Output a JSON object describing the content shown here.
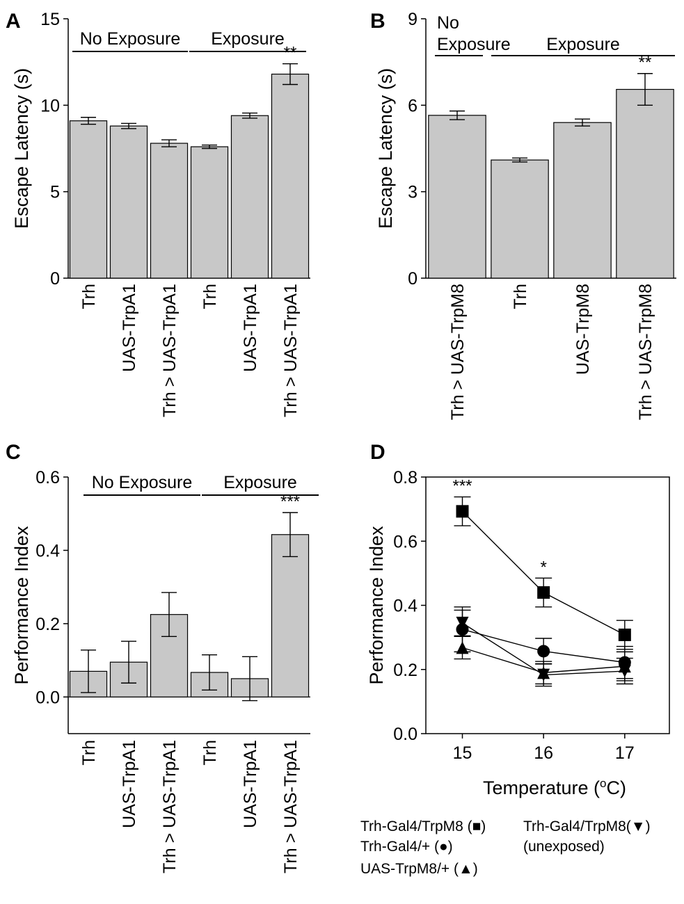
{
  "chart_data": [
    {
      "panel": "A",
      "type": "bar",
      "title": "",
      "xlabel": "",
      "ylabel": "Escape Latency (s)",
      "ylim": [
        0,
        15
      ],
      "yticks": [
        0,
        5,
        10,
        15
      ],
      "categories": [
        "Trh",
        "UAS-TrpA1",
        "Trh > UAS-TrpA1",
        "Trh",
        "UAS-TrpA1",
        "Trh > UAS-TrpA1"
      ],
      "values": [
        9.1,
        8.8,
        7.8,
        7.6,
        9.4,
        11.8
      ],
      "errors": [
        0.2,
        0.15,
        0.2,
        0.1,
        0.15,
        0.6
      ],
      "groups": [
        {
          "label": "No Exposure",
          "start": 0,
          "end": 2
        },
        {
          "label": "Exposure",
          "start": 3,
          "end": 5
        }
      ],
      "annotations": [
        {
          "index": 5,
          "text": "**"
        }
      ]
    },
    {
      "panel": "B",
      "type": "bar",
      "title": "",
      "xlabel": "",
      "ylabel": "Escape Latency (s)",
      "ylim": [
        0,
        9
      ],
      "yticks": [
        0,
        3,
        6,
        9
      ],
      "categories": [
        "Trh > UAS-TrpM8",
        "Trh",
        "UAS-TrpM8",
        "Trh > UAS-TrpM8"
      ],
      "values": [
        5.65,
        4.1,
        5.4,
        6.55
      ],
      "errors": [
        0.15,
        0.07,
        0.12,
        0.55
      ],
      "groups": [
        {
          "label_lines": [
            "No",
            "Exposure"
          ],
          "start": 0,
          "end": 0
        },
        {
          "label_lines": [
            "Exposure"
          ],
          "start": 1,
          "end": 3
        }
      ],
      "annotations": [
        {
          "index": 3,
          "text": "**"
        }
      ]
    },
    {
      "panel": "C",
      "type": "bar",
      "title": "",
      "xlabel": "",
      "ylabel": "Performance Index",
      "ylim": [
        -0.1,
        0.6
      ],
      "yticks": [
        0.0,
        0.2,
        0.4,
        0.6
      ],
      "ytick_labels": [
        "0.0",
        "0.2",
        "0.4",
        "0.6"
      ],
      "categories": [
        "Trh",
        "UAS-TrpA1",
        "Trh > UAS-TrpA1",
        "Trh",
        "UAS-TrpA1",
        "Trh > UAS-TrpA1"
      ],
      "values": [
        0.07,
        0.095,
        0.225,
        0.067,
        0.05,
        0.443
      ],
      "errors": [
        0.058,
        0.057,
        0.06,
        0.048,
        0.06,
        0.06
      ],
      "groups": [
        {
          "label": "No Exposure",
          "start": 0,
          "end": 2
        },
        {
          "label": "Exposure",
          "start": 3,
          "end": 5
        }
      ],
      "annotations": [
        {
          "index": 5,
          "text": "***"
        }
      ]
    },
    {
      "panel": "D",
      "type": "line",
      "title": "",
      "xlabel": "Temperature (°C)",
      "xlabel_parts": [
        "Temperature (",
        "o",
        "C)"
      ],
      "ylabel": "Performance Index",
      "x": [
        15,
        16,
        17
      ],
      "xlim": [
        14.55,
        17.55
      ],
      "ylim": [
        0.0,
        0.8
      ],
      "yticks": [
        0.0,
        0.2,
        0.4,
        0.6,
        0.8
      ],
      "ytick_labels": [
        "0.0",
        "0.2",
        "0.4",
        "0.6",
        "0.8"
      ],
      "series": [
        {
          "name": "Trh-Gal4/TrpM8",
          "marker": "square",
          "values": [
            0.693,
            0.44,
            0.308
          ],
          "errors": [
            0.045,
            0.045,
            0.045
          ]
        },
        {
          "name": "Trh-Gal4/+",
          "marker": "circle",
          "values": [
            0.325,
            0.257,
            0.222
          ],
          "errors": [
            0.07,
            0.04,
            0.05
          ]
        },
        {
          "name": "UAS-TrpM8/+",
          "marker": "triangle-up",
          "values": [
            0.268,
            0.19,
            0.21
          ],
          "errors": [
            0.035,
            0.035,
            0.045
          ]
        },
        {
          "name": "Trh-Gal4/TrpM8 (unexposed)",
          "marker": "triangle-down",
          "values": [
            0.345,
            0.183,
            0.195
          ],
          "errors": [
            0.04,
            0.035,
            0.04
          ]
        }
      ],
      "annotations": [
        {
          "x": 15,
          "text": "***"
        },
        {
          "x": 16,
          "text": "*"
        }
      ],
      "legend": {
        "placement": "bottom",
        "entries": [
          {
            "text": "Trh-Gal4/TrpM8 (■)"
          },
          {
            "text": "Trh-Gal4/+ (●)"
          },
          {
            "text": "UAS-TrpM8/+ (▲)"
          },
          {
            "text": "Trh-Gal4/TrpM8(▼)"
          },
          {
            "text": "(unexposed)"
          }
        ]
      }
    }
  ],
  "colors": {
    "bar_fill": "#c8c8c8",
    "stroke": "#000000"
  }
}
